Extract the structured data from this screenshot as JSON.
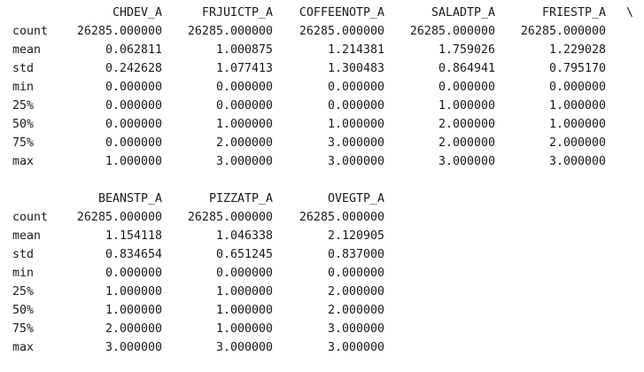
{
  "blocks": [
    {
      "columns": [
        "CHDEV_A",
        "FRJUICTP_A",
        "COFFEENOTP_A",
        "SALADTP_A",
        "FRIESTP_A"
      ],
      "continuation": "\\",
      "rows": [
        {
          "label": "count",
          "values": [
            "26285.000000",
            "26285.000000",
            "26285.000000",
            "26285.000000",
            "26285.000000"
          ]
        },
        {
          "label": "mean",
          "values": [
            "0.062811",
            "1.000875",
            "1.214381",
            "1.759026",
            "1.229028"
          ]
        },
        {
          "label": "std",
          "values": [
            "0.242628",
            "1.077413",
            "1.300483",
            "0.864941",
            "0.795170"
          ]
        },
        {
          "label": "min",
          "values": [
            "0.000000",
            "0.000000",
            "0.000000",
            "0.000000",
            "0.000000"
          ]
        },
        {
          "label": "25%",
          "values": [
            "0.000000",
            "0.000000",
            "0.000000",
            "1.000000",
            "1.000000"
          ]
        },
        {
          "label": "50%",
          "values": [
            "0.000000",
            "1.000000",
            "1.000000",
            "2.000000",
            "1.000000"
          ]
        },
        {
          "label": "75%",
          "values": [
            "0.000000",
            "2.000000",
            "3.000000",
            "2.000000",
            "2.000000"
          ]
        },
        {
          "label": "max",
          "values": [
            "1.000000",
            "3.000000",
            "3.000000",
            "3.000000",
            "3.000000"
          ]
        }
      ]
    },
    {
      "columns": [
        "BEANSTP_A",
        "PIZZATP_A",
        "OVEGTP_A"
      ],
      "continuation": "",
      "rows": [
        {
          "label": "count",
          "values": [
            "26285.000000",
            "26285.000000",
            "26285.000000"
          ]
        },
        {
          "label": "mean",
          "values": [
            "1.154118",
            "1.046338",
            "2.120905"
          ]
        },
        {
          "label": "std",
          "values": [
            "0.834654",
            "0.651245",
            "0.837000"
          ]
        },
        {
          "label": "min",
          "values": [
            "0.000000",
            "0.000000",
            "0.000000"
          ]
        },
        {
          "label": "25%",
          "values": [
            "1.000000",
            "1.000000",
            "2.000000"
          ]
        },
        {
          "label": "50%",
          "values": [
            "1.000000",
            "1.000000",
            "2.000000"
          ]
        },
        {
          "label": "75%",
          "values": [
            "2.000000",
            "1.000000",
            "3.000000"
          ]
        },
        {
          "label": "max",
          "values": [
            "3.000000",
            "3.000000",
            "3.000000"
          ]
        }
      ]
    }
  ]
}
